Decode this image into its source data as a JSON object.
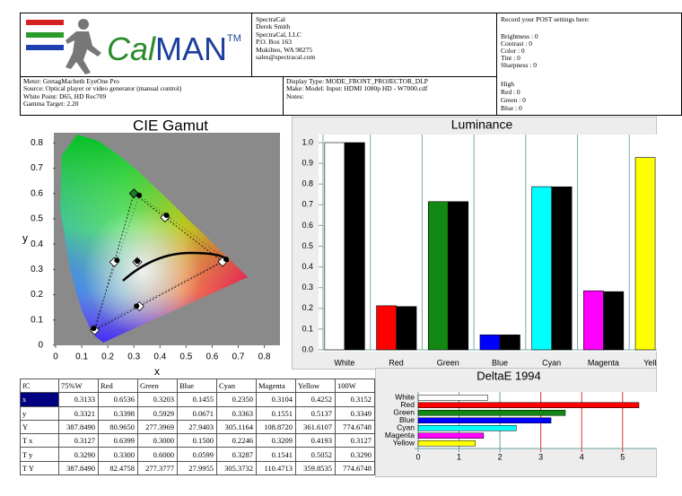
{
  "header": {
    "logo": [
      "Cal",
      "MAN",
      "TM"
    ],
    "company": [
      "SpectraCal",
      "Derek Smith",
      "SpectraCal, LLC",
      "P.O. Box 163",
      "Mukilteo, WA 98275",
      "sales@spectracal.com"
    ],
    "post": [
      "Record your POST settings here:",
      "Brightness : 0",
      "Contrast : 0",
      "Color : 0",
      "Tint : 0",
      "Sharpness : 0",
      "High",
      "Red : 0",
      "Green : 0",
      "Blue : 0"
    ],
    "meter": [
      "Meter: GretagMacbeth EyeOne Pro",
      "Source: Optical player or video generator (manual control)",
      "White Point: D65, HD Rec709",
      "Gamma Target: 2.20"
    ],
    "display": [
      "Display Type: MODE_FRONT_PROJECTOR_DLP",
      "Make: Model: Input: HDMI 1080p HD    -    W7000.cdf",
      "Notes:"
    ]
  },
  "chart_data": [
    {
      "type": "scatter",
      "title": "CIE Gamut",
      "x_label": "x",
      "y_label": "y",
      "xlim": [
        0,
        0.86
      ],
      "ylim": [
        0,
        0.84
      ],
      "xticks": [
        0,
        0.1,
        0.2,
        0.3,
        0.4,
        0.5,
        0.6,
        0.7,
        0.8
      ],
      "yticks": [
        0,
        0.1,
        0.2,
        0.3,
        0.4,
        0.5,
        0.6,
        0.7,
        0.8
      ],
      "series": [
        {
          "marker": "diamond",
          "colors": [
            "#ffffff",
            "#ffffff",
            "#1a7a2a",
            "#ffffff",
            "#ffffff",
            "#ffffff",
            "#ffffff"
          ],
          "x": [
            0.3127,
            0.6399,
            0.3,
            0.15,
            0.2246,
            0.3209,
            0.4193
          ],
          "values": [
            0.329,
            0.33,
            0.6,
            0.0599,
            0.3287,
            0.1541,
            0.5052
          ]
        },
        {
          "marker": "dot",
          "color": "#000000",
          "x": [
            0.3133,
            0.6536,
            0.3203,
            0.1455,
            0.235,
            0.3104,
            0.4252
          ],
          "values": [
            0.3321,
            0.3398,
            0.5929,
            0.0671,
            0.3363,
            0.1551,
            0.5137
          ]
        }
      ]
    },
    {
      "type": "bar",
      "title": "Luminance",
      "categories": [
        "White",
        "Red",
        "Green",
        "Blue",
        "Cyan",
        "Magenta",
        "Yellow"
      ],
      "ylim": [
        0,
        1
      ],
      "yticks": [
        {
          "value": 0,
          "label": "0.0"
        },
        0.1,
        0.2,
        0.3,
        0.4,
        0.5,
        0.6,
        0.7,
        0.8,
        0.9,
        {
          "value": 1,
          "label": "1.0"
        }
      ],
      "series": [
        {
          "colors": [
            "#ffffff",
            "#ff0000",
            "#118811",
            "#0000ff",
            "#00ffff",
            "#ff00ff",
            "#ffff00"
          ],
          "values": [
            1,
            0.2126,
            0.7152,
            0.0722,
            0.7874,
            0.2848,
            0.9278
          ]
        },
        {
          "color": "#000000",
          "values": [
            1,
            0.2088,
            0.7152,
            0.072,
            0.7867,
            0.2807,
            null
          ]
        }
      ]
    },
    {
      "type": "hbar",
      "title": "DeltaE 1994",
      "categories": [
        "White",
        "Red",
        "Green",
        "Blue",
        "Cyan",
        "Magenta",
        "Yellow"
      ],
      "colors": [
        "#ffffff",
        "#ff0000",
        "#118811",
        "#0000ff",
        "#00ffff",
        "#ff00ff",
        "#ffff00"
      ],
      "values": [
        1.7,
        5.4,
        3.6,
        3.25,
        2.4,
        1.6,
        1.4
      ],
      "xlim": [
        0,
        5.4
      ],
      "xticks": [
        0,
        1,
        2,
        3,
        4,
        5
      ],
      "grid_alert_from": 3
    }
  ],
  "table": {
    "header": [
      "fC",
      "75%W",
      "Red",
      "Green",
      "Blue",
      "Cyan",
      "Magenta",
      "Yellow",
      "100W"
    ],
    "rows": [
      [
        "x",
        "0.3133",
        "0.6536",
        "0.3203",
        "0.1455",
        "0.2350",
        "0.3104",
        "0.4252",
        "0.3152"
      ],
      [
        "y",
        "0.3321",
        "0.3398",
        "0.5929",
        "0.0671",
        "0.3363",
        "0.1551",
        "0.5137",
        "0.3349"
      ],
      [
        "Y",
        "387.8490",
        "80.9650",
        "277.3969",
        "27.9403",
        "305.1164",
        "108.8720",
        "361.6107",
        "774.6748"
      ],
      [
        "T x",
        "0.3127",
        "0.6399",
        "0.3000",
        "0.1500",
        "0.2246",
        "0.3209",
        "0.4193",
        "0.3127"
      ],
      [
        "T y",
        "0.3290",
        "0.3300",
        "0.6000",
        "0.0599",
        "0.3287",
        "0.1541",
        "0.5052",
        "0.3290"
      ],
      [
        "T Y",
        "387.8490",
        "82.4758",
        "277.3777",
        "27.9955",
        "305.3732",
        "110.4713",
        "359.8535",
        "774.6748"
      ]
    ]
  }
}
